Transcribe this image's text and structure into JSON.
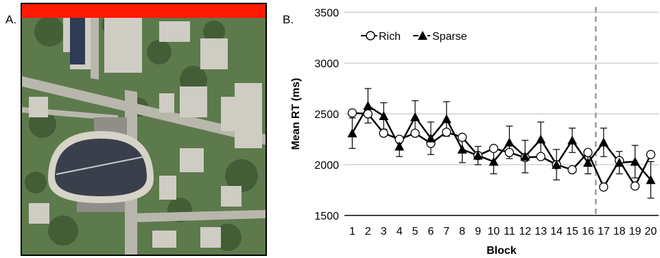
{
  "panels": {
    "a_label": "A.",
    "b_label": "B."
  },
  "map": {
    "highlight_color": "#ff1a00",
    "grass_color": "#5d7a4c",
    "road_color": "#b9b7ad",
    "roof_color": "#cfccc4",
    "dome_color": "#3a3f4c"
  },
  "chart_data": {
    "type": "line",
    "title": "",
    "xlabel": "Block",
    "ylabel": "Mean RT (ms)",
    "ylim": [
      1500,
      3500
    ],
    "yticks": [
      1500,
      2000,
      2500,
      3000,
      3500
    ],
    "categories": [
      "1",
      "2",
      "3",
      "4",
      "5",
      "6",
      "7",
      "8",
      "9",
      "10",
      "11",
      "12",
      "13",
      "14",
      "15",
      "16",
      "17",
      "18",
      "19",
      "20"
    ],
    "grid": "horizontal",
    "legend": "top-left",
    "reference_line": {
      "between": [
        "16",
        "17"
      ],
      "style": "dashed",
      "color": "#9a9a9a"
    },
    "series": [
      {
        "name": "Rich",
        "marker": "circle-open",
        "values": [
          2510,
          2500,
          2310,
          2250,
          2310,
          2210,
          2320,
          2270,
          2090,
          2160,
          2120,
          2070,
          2080,
          2000,
          1950,
          2120,
          1780,
          2040,
          1790,
          2100
        ],
        "errors": [
          0,
          0,
          0,
          0,
          0,
          0,
          0,
          0,
          0,
          0,
          0,
          0,
          0,
          0,
          0,
          0,
          0,
          0,
          0,
          0
        ]
      },
      {
        "name": "Sparse",
        "marker": "triangle-filled",
        "values": [
          2310,
          2580,
          2480,
          2180,
          2470,
          2260,
          2450,
          2150,
          2090,
          2030,
          2220,
          2080,
          2250,
          2000,
          2240,
          2020,
          2220,
          2020,
          2030,
          1850
        ],
        "errors": [
          150,
          170,
          130,
          100,
          160,
          160,
          170,
          130,
          90,
          120,
          160,
          160,
          170,
          150,
          120,
          110,
          140,
          110,
          160,
          180
        ]
      }
    ]
  }
}
